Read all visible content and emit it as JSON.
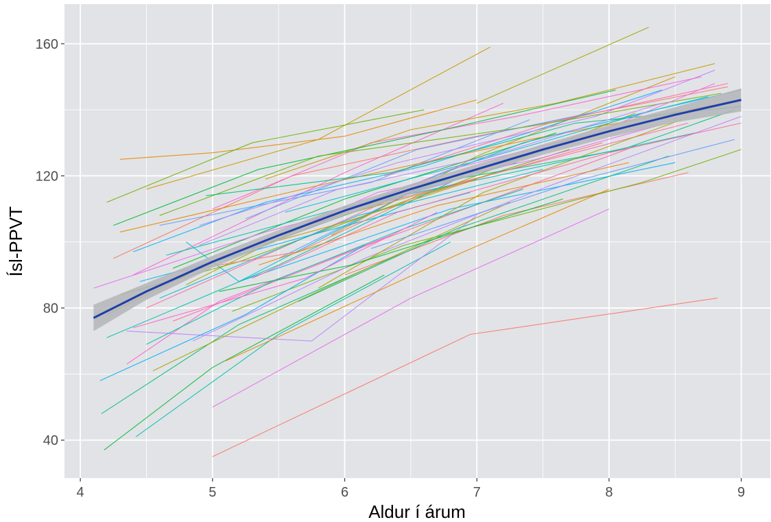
{
  "chart_data": {
    "type": "line",
    "title": "",
    "xlabel": "Aldur í árum",
    "ylabel": "Ísl-PPVT",
    "xlim": [
      3.88,
      9.22
    ],
    "ylim": [
      28.5,
      172
    ],
    "x_ticks": [
      4,
      5,
      6,
      7,
      8,
      9
    ],
    "y_ticks": [
      40,
      80,
      120,
      160
    ],
    "grid": true,
    "legend": "none",
    "colors": {
      "panel": "#e2e3e6",
      "grid": "#ffffff",
      "smooth": "#1f3fa8",
      "band": "#b4b5b8"
    },
    "palette": [
      "#f8766d",
      "#e58700",
      "#c99800",
      "#a3a500",
      "#6bb100",
      "#00ba38",
      "#00bf7d",
      "#00c0af",
      "#00bcd8",
      "#00b0f6",
      "#619cff",
      "#b983ff",
      "#e76bf3",
      "#fd61d1",
      "#ff67a4"
    ],
    "series": [
      {
        "x": [
          5.0,
          6.95,
          8.82
        ],
        "y": [
          35,
          72,
          83
        ]
      },
      {
        "x": [
          4.3,
          5.0,
          6.0,
          7.0
        ],
        "y": [
          125,
          127,
          132,
          143
        ]
      },
      {
        "x": [
          4.5,
          5.8,
          7.1
        ],
        "y": [
          116,
          131,
          159
        ]
      },
      {
        "x": [
          7.0,
          8.3
        ],
        "y": [
          142,
          165
        ]
      },
      {
        "x": [
          4.2,
          5.3,
          6.6
        ],
        "y": [
          112,
          130,
          140
        ]
      },
      {
        "x": [
          4.18,
          5.0,
          6.3
        ],
        "y": [
          37,
          62,
          90
        ]
      },
      {
        "x": [
          4.16,
          5.2,
          6.4
        ],
        "y": [
          48,
          75,
          96
        ]
      },
      {
        "x": [
          4.42,
          5.5,
          6.8
        ],
        "y": [
          41,
          72,
          100
        ]
      },
      {
        "x": [
          4.8,
          5.2,
          6.5,
          7.3
        ],
        "y": [
          100,
          88,
          115,
          124
        ]
      },
      {
        "x": [
          5.2,
          6.8,
          8.5
        ],
        "y": [
          88,
          110,
          124
        ]
      },
      {
        "x": [
          4.6,
          6.2,
          7.4
        ],
        "y": [
          105,
          118,
          137
        ]
      },
      {
        "x": [
          4.35,
          5.75,
          7.0
        ],
        "y": [
          73,
          70,
          108
        ]
      },
      {
        "x": [
          5.0,
          6.5,
          8.0
        ],
        "y": [
          50,
          83,
          110
        ]
      },
      {
        "x": [
          4.4,
          6.0,
          7.2
        ],
        "y": [
          90,
          121,
          142
        ]
      },
      {
        "x": [
          4.5,
          6.3,
          8.6
        ],
        "y": [
          80,
          112,
          136
        ]
      },
      {
        "x": [
          4.25,
          5.6,
          7.0,
          8.9
        ],
        "y": [
          95,
          120,
          132,
          147
        ]
      },
      {
        "x": [
          5.1,
          6.9,
          8.0
        ],
        "y": [
          64,
          97,
          116
        ]
      },
      {
        "x": [
          5.9,
          7.0,
          8.5
        ],
        "y": [
          102,
          126,
          150
        ]
      },
      {
        "x": [
          4.8,
          5.7,
          6.8,
          8.2
        ],
        "y": [
          87,
          105,
          117,
          139
        ]
      },
      {
        "x": [
          4.3,
          5.2,
          6.5,
          7.7
        ],
        "y": [
          84,
          94,
          113,
          128
        ]
      },
      {
        "x": [
          4.7,
          6.0,
          7.6
        ],
        "y": [
          92,
          113,
          133
        ]
      },
      {
        "x": [
          5.3,
          6.7,
          8.1,
          8.95
        ],
        "y": [
          98,
          118,
          128,
          140
        ]
      },
      {
        "x": [
          4.2,
          5.5,
          6.9
        ],
        "y": [
          71,
          93,
          120
        ]
      },
      {
        "x": [
          4.6,
          6.1,
          7.5
        ],
        "y": [
          83,
          108,
          122
        ]
      },
      {
        "x": [
          4.4,
          5.4,
          6.6,
          8.4
        ],
        "y": [
          97,
          112,
          123,
          146
        ]
      },
      {
        "x": [
          5.5,
          6.6,
          7.8
        ],
        "y": [
          95,
          117,
          131
        ]
      },
      {
        "x": [
          4.9,
          6.4,
          7.9,
          8.8
        ],
        "y": [
          105,
          124,
          138,
          152
        ]
      },
      {
        "x": [
          4.1,
          5.4,
          6.8
        ],
        "y": [
          86,
          103,
          118
        ]
      },
      {
        "x": [
          5.0,
          6.2,
          7.3,
          8.7
        ],
        "y": [
          110,
          130,
          138,
          150
        ]
      },
      {
        "x": [
          4.7,
          6.3,
          8.2
        ],
        "y": [
          76,
          101,
          129
        ]
      },
      {
        "x": [
          6.0,
          7.2,
          8.6
        ],
        "y": [
          90,
          108,
          121
        ]
      },
      {
        "x": [
          4.3,
          5.9,
          7.4,
          9.0
        ],
        "y": [
          103,
          118,
          131,
          143
        ]
      },
      {
        "x": [
          5.4,
          6.5,
          7.6,
          8.8
        ],
        "y": [
          119,
          134,
          142,
          154
        ]
      },
      {
        "x": [
          4.55,
          5.85,
          7.25
        ],
        "y": [
          61,
          86,
          112
        ]
      },
      {
        "x": [
          5.15,
          6.45,
          8.25,
          9.0
        ],
        "y": [
          79,
          99,
          118,
          128
        ]
      },
      {
        "x": [
          4.25,
          5.35,
          6.75,
          8.05
        ],
        "y": [
          105,
          122,
          134,
          146
        ]
      },
      {
        "x": [
          5.65,
          6.85,
          8.45
        ],
        "y": [
          82,
          104,
          126
        ]
      },
      {
        "x": [
          4.65,
          5.95,
          7.15,
          8.65
        ],
        "y": [
          96,
          110,
          120,
          133
        ]
      },
      {
        "x": [
          6.1,
          7.35,
          8.75
        ],
        "y": [
          111,
          130,
          144
        ]
      },
      {
        "x": [
          4.45,
          5.55,
          6.95
        ],
        "y": [
          88,
          100,
          115
        ]
      },
      {
        "x": [
          5.25,
          6.55,
          7.85
        ],
        "y": [
          107,
          128,
          139
        ]
      },
      {
        "x": [
          4.85,
          6.15,
          7.55,
          9.0
        ],
        "y": [
          70,
          95,
          117,
          138
        ]
      },
      {
        "x": [
          5.45,
          6.25,
          7.45,
          8.35
        ],
        "y": [
          101,
          115,
          125,
          135
        ]
      },
      {
        "x": [
          4.35,
          5.05,
          6.35
        ],
        "y": [
          63,
          82,
          102
        ]
      },
      {
        "x": [
          6.3,
          7.55,
          8.9
        ],
        "y": [
          120,
          136,
          148
        ]
      },
      {
        "x": [
          4.75,
          5.65,
          6.55,
          7.95
        ],
        "y": [
          91,
          97,
          114,
          130
        ]
      },
      {
        "x": [
          5.35,
          6.7,
          8.15
        ],
        "y": [
          93,
          111,
          124
        ]
      },
      {
        "x": [
          4.2,
          5.1,
          6.0,
          7.0
        ],
        "y": [
          78,
          96,
          106,
          119
        ]
      },
      {
        "x": [
          5.8,
          7.05,
          8.55
        ],
        "y": [
          86,
          115,
          137
        ]
      },
      {
        "x": [
          4.6,
          5.8,
          7.4,
          8.85
        ],
        "y": [
          108,
          126,
          135,
          145
        ]
      },
      {
        "x": [
          5.05,
          6.05,
          7.65
        ],
        "y": [
          85,
          93,
          113
        ]
      },
      {
        "x": [
          4.95,
          6.35,
          7.75,
          9.0
        ],
        "y": [
          114,
          121,
          136,
          141
        ]
      },
      {
        "x": [
          4.5,
          5.45,
          6.45,
          7.35
        ],
        "y": [
          69,
          88,
          104,
          116
        ]
      },
      {
        "x": [
          5.55,
          6.95,
          8.35,
          9.0
        ],
        "y": [
          109,
          124,
          140,
          146
        ]
      },
      {
        "x": [
          4.15,
          5.25,
          6.15
        ],
        "y": [
          58,
          78,
          99
        ]
      },
      {
        "x": [
          6.2,
          7.8,
          8.95
        ],
        "y": [
          98,
          119,
          131
        ]
      },
      {
        "x": [
          4.9,
          5.95,
          7.1,
          8.4
        ],
        "y": [
          99,
          116,
          126,
          142
        ]
      },
      {
        "x": [
          5.7,
          6.8,
          7.9,
          8.8
        ],
        "y": [
          104,
          122,
          133,
          148
        ]
      },
      {
        "x": [
          4.4,
          5.7,
          6.7
        ],
        "y": [
          74,
          89,
          109
        ]
      },
      {
        "x": [
          5.3,
          6.4,
          8.0,
          9.0
        ],
        "y": [
          89,
          109,
          127,
          136
        ]
      }
    ],
    "smooth": {
      "x": [
        4.1,
        4.5,
        5.0,
        5.5,
        6.0,
        6.5,
        7.0,
        7.5,
        8.0,
        8.5,
        9.0
      ],
      "y": [
        77,
        85,
        94,
        102,
        109.5,
        116,
        122,
        128,
        133.5,
        138.5,
        143
      ],
      "band_halfwidth": [
        4,
        2.5,
        1.8,
        1.6,
        1.5,
        1.5,
        1.5,
        1.6,
        1.8,
        2.3,
        3.5
      ]
    }
  }
}
